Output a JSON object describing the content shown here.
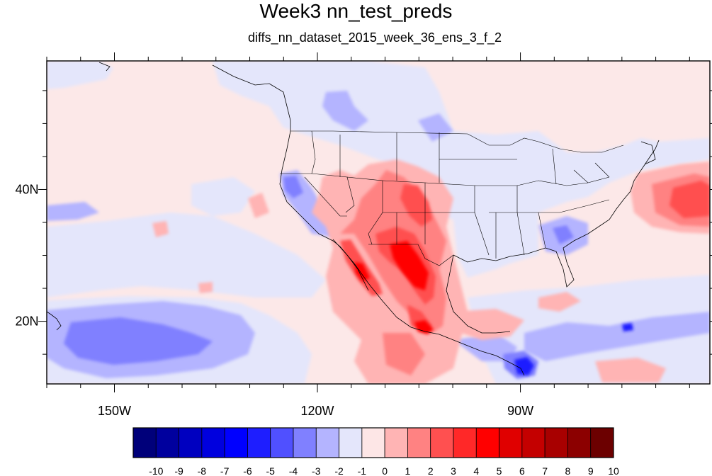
{
  "title": "Week3 nn_test_preds",
  "subtitle": "diffs_nn_dataset_2015_week_36_ens_3_f_2",
  "map": {
    "lon_range": [
      -160,
      -62
    ],
    "lat_range": [
      10.5,
      59.5
    ],
    "lon_ticks": [
      {
        "lon": -150,
        "label": "150W"
      },
      {
        "lon": -120,
        "label": "120W"
      },
      {
        "lon": -90,
        "label": "90W"
      }
    ],
    "lat_ticks": [
      {
        "lat": 40,
        "label": "40N"
      },
      {
        "lat": 20,
        "label": "20N"
      }
    ],
    "background_color": "#fce8e8"
  },
  "colorbar": {
    "levels": [
      "-10",
      "-9",
      "-8",
      "-7",
      "-6",
      "-5",
      "-4",
      "-3",
      "-2",
      "-1",
      "0",
      "1",
      "2",
      "3",
      "4",
      "5",
      "6",
      "7",
      "8",
      "9",
      "10"
    ],
    "colors": [
      "#00007a",
      "#00009e",
      "#0000c0",
      "#0000de",
      "#0000ff",
      "#1e1eff",
      "#5050ff",
      "#8080ff",
      "#b4b4ff",
      "#e4e6fb",
      "#fde6e6",
      "#ffb4b4",
      "#ff8282",
      "#ff5050",
      "#ff2828",
      "#ff0000",
      "#e00000",
      "#c40000",
      "#a80000",
      "#8c0000",
      "#6c0000"
    ]
  }
}
